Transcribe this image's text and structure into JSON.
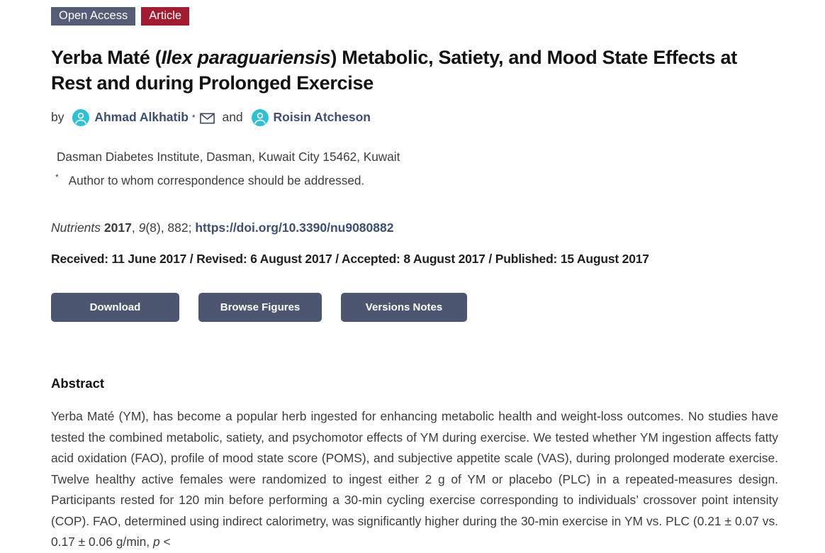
{
  "badges": [
    {
      "label": "Open Access"
    },
    {
      "label": "Article"
    }
  ],
  "title_rich": [
    {
      "t": "Yerba Maté ("
    },
    {
      "t": "Ilex paraguariensis",
      "c": "i"
    },
    {
      "t": ") Metabolic, Satiety, and Mood State Effects at Rest and during Prolonged Exercise"
    }
  ],
  "byline": {
    "by_label": "by ",
    "and_label": " and ",
    "authors": [
      {
        "name": "Ahmad Alkhatib",
        "marker": "*",
        "has_email": true
      },
      {
        "name": "Roisin Atcheson"
      }
    ]
  },
  "affiliation": {
    "text": "Dasman Diabetes Institute, Dasman, Kuwait City 15462, Kuwait",
    "correspondence_marker": "*",
    "correspondence_text": "Author to whom correspondence should be addressed."
  },
  "citation_rich": [
    {
      "t": "Nutrients",
      "c": "i"
    },
    {
      "t": " "
    },
    {
      "t": "2017",
      "c": "b"
    },
    {
      "t": ", "
    },
    {
      "t": "9",
      "c": "i"
    },
    {
      "t": "(8), 882; "
    },
    {
      "t": "https://doi.org/10.3390/nu9080882",
      "c": "link"
    }
  ],
  "history": {
    "text": "Received: 11 June 2017 / Revised: 6 August 2017 / Accepted: 8 August 2017 / Published: 15 August 2017"
  },
  "actions": [
    {
      "label": "Download"
    },
    {
      "label": "Browse Figures"
    },
    {
      "label": "Versions Notes"
    }
  ],
  "abstract": {
    "heading": "Abstract",
    "body_rich": [
      {
        "t": "Yerba Maté (YM), has become a popular herb ingested for enhancing metabolic health and weight-loss outcomes. No studies have tested the combined metabolic, satiety, and psychomotor effects of YM during exercise. We tested whether YM ingestion affects fatty acid oxidation (FAO), profile of mood state score (POMS), and subjective appetite scale (VAS), during prolonged moderate exercise. Twelve healthy active females were randomized to ingest either 2 g of YM or placebo (PLC) in a repeated-measures design. Participants rested for 120 min before performing a 30-min cycling exercise corresponding to individuals’ crossover point intensity (COP). FAO, determined using indirect calorimetry, was significantly higher during the 30-min exercise in YM vs. PLC (0.21 ± 0.07 vs. 0.17 ± 0.06 g/min, "
      },
      {
        "t": "p",
        "c": "i"
      },
      {
        "t": " <"
      }
    ]
  },
  "icons": {
    "person": "person-avatar-icon",
    "email": "envelope-icon"
  },
  "colors": {
    "badge_slate": "#545d75",
    "badge_red": "#a01c30",
    "button_slate": "#4d5670",
    "link_navy": "#3e4f74",
    "icon_teal": "#2fc0d4",
    "body_text": "#3d3d3d",
    "title_text": "#121212"
  }
}
